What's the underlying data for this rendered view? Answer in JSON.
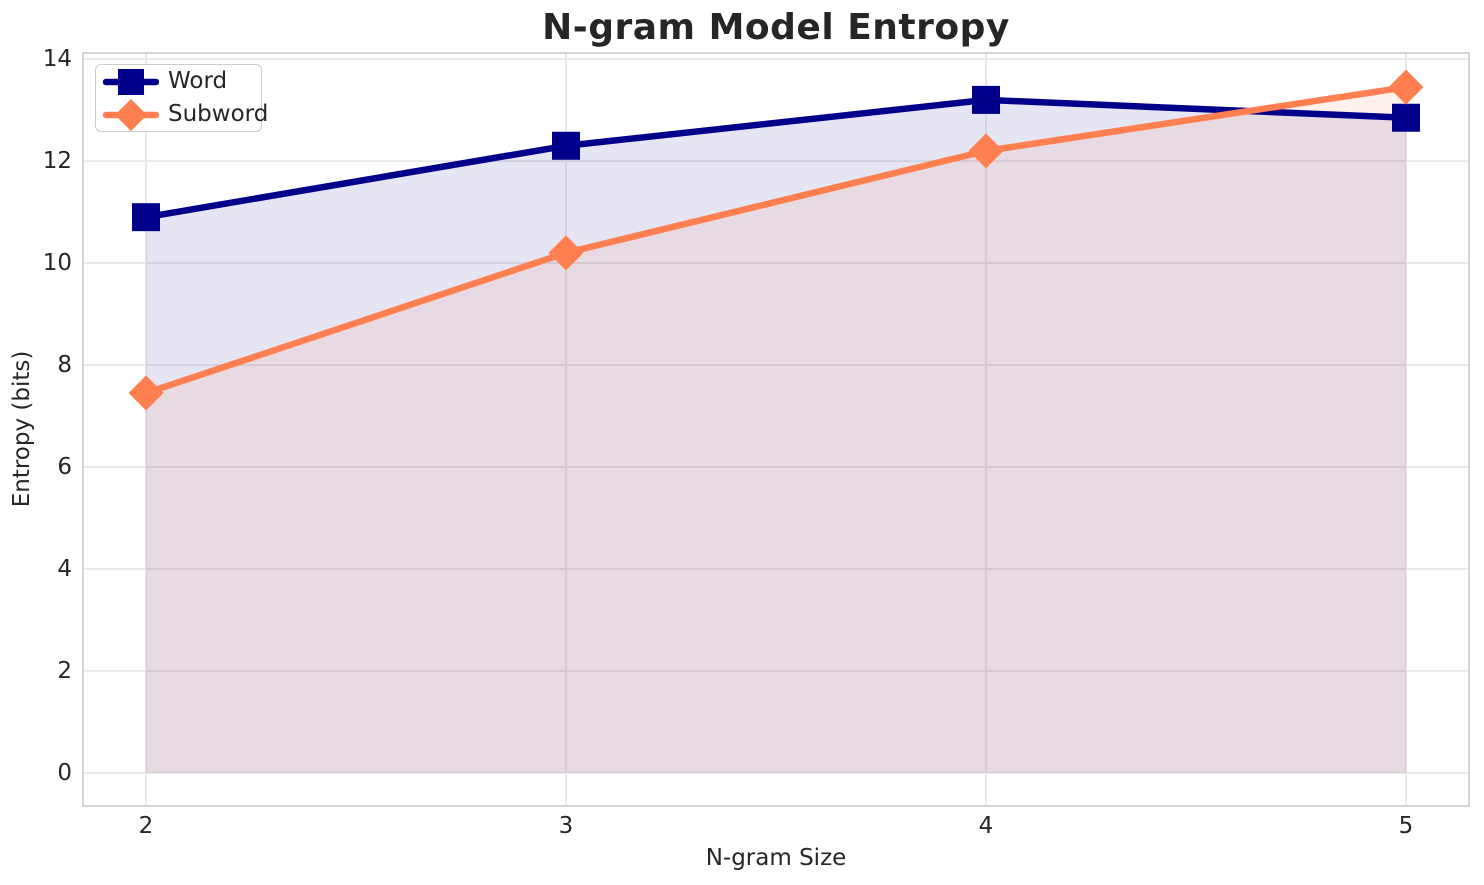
{
  "chart_data": {
    "type": "line",
    "title": "N-gram Model Entropy",
    "xlabel": "N-gram Size",
    "ylabel": "Entropy (bits)",
    "x": [
      2,
      3,
      4,
      5
    ],
    "series": [
      {
        "name": "Word",
        "marker": "square",
        "color": "#00008B",
        "values": [
          10.9,
          12.3,
          13.2,
          12.85
        ]
      },
      {
        "name": "Subword",
        "marker": "diamond",
        "color": "#FF7F50",
        "values": [
          7.45,
          10.2,
          12.2,
          13.45
        ]
      }
    ],
    "xticks": [
      2,
      3,
      4,
      5
    ],
    "yticks": [
      0,
      2,
      4,
      6,
      8,
      10,
      12,
      14
    ],
    "xlim": [
      1.85,
      5.15
    ],
    "ylim": [
      -0.65,
      14.12
    ],
    "grid": true,
    "fill_to_zero": true,
    "fill_alpha": 0.1,
    "legend": {
      "position": "upper-left",
      "labels": [
        "Word",
        "Subword"
      ]
    },
    "style": {
      "grid_color": "#e9e9e9",
      "spine_color": "#d4d4d4",
      "text_color": "#262626",
      "legend_border_color": "#cccccc",
      "background": "#ffffff"
    }
  }
}
